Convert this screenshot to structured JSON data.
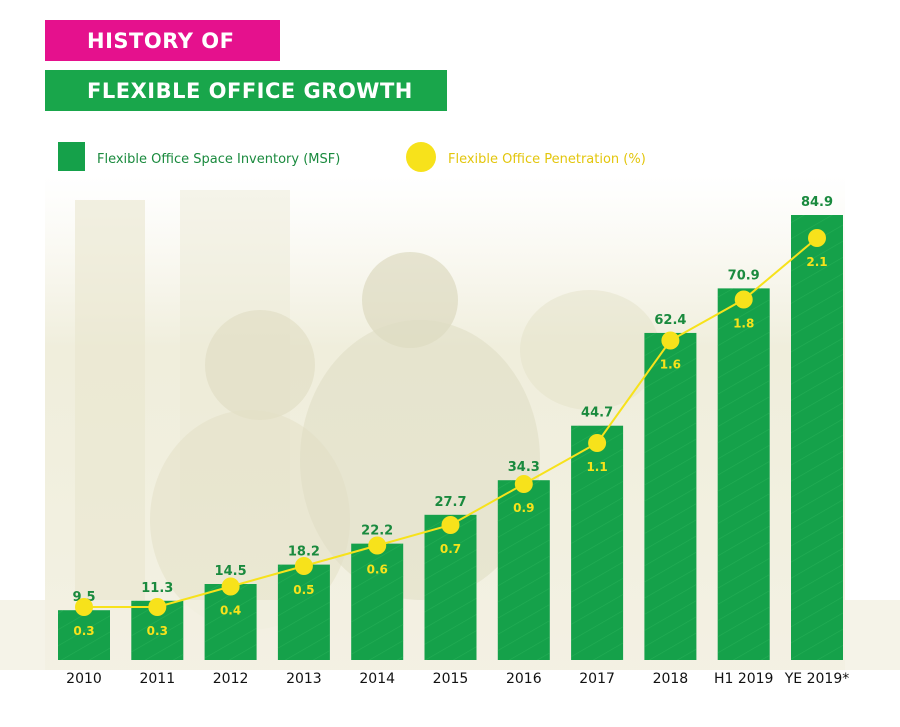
{
  "header": {
    "title_line1": "HISTORY OF",
    "title_line2": "FLEXIBLE OFFICE GROWTH"
  },
  "colors": {
    "bar": "#15a14a",
    "line": "#f7e21b",
    "magenta": "#e5118d",
    "value_text": "#1a8a3e"
  },
  "chart_data": {
    "type": "bar",
    "categories": [
      "2010",
      "2011",
      "2012",
      "2013",
      "2014",
      "2015",
      "2016",
      "2017",
      "2018",
      "H1 2019",
      "YE 2019*"
    ],
    "series": [
      {
        "name": "Flexible Office Space Inventory (MSF)",
        "type": "bar",
        "values": [
          9.5,
          11.3,
          14.5,
          18.2,
          22.2,
          27.7,
          34.3,
          44.7,
          62.4,
          70.9,
          84.9
        ],
        "labels": [
          "9.5",
          "11.3",
          "14.5",
          "18.2",
          "22.2",
          "27.7",
          "34.3",
          "44.7",
          "62.4",
          "70.9",
          "84.9"
        ]
      },
      {
        "name": "Flexible Office Penetration (%)",
        "type": "line",
        "values": [
          0.3,
          0.3,
          0.4,
          0.5,
          0.6,
          0.7,
          0.9,
          1.1,
          1.6,
          1.8,
          2.1
        ],
        "labels": [
          "0.3",
          "0.3",
          "0.4",
          "0.5",
          "0.6",
          "0.7",
          "0.9",
          "1.1",
          "1.6",
          "1.8",
          "2.1"
        ]
      }
    ],
    "title": "HISTORY OF FLEXIBLE OFFICE GROWTH",
    "legend_position": "top-left",
    "grid": false
  }
}
